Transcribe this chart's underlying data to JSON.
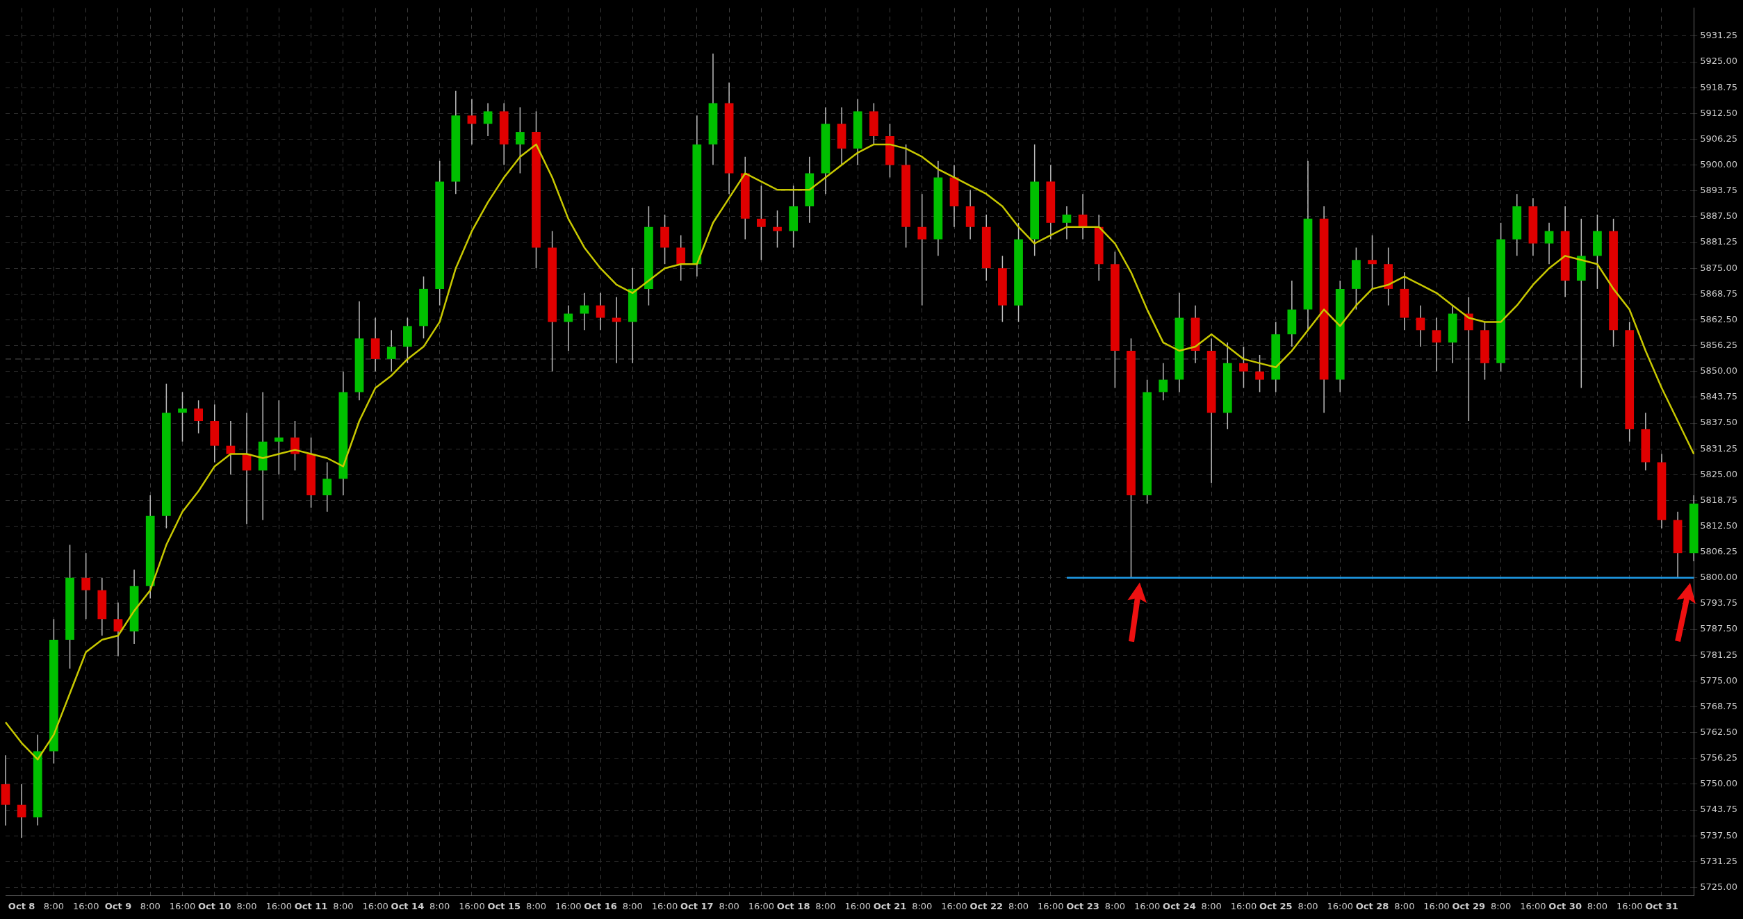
{
  "chart_data": {
    "type": "candlestick",
    "categories": [
      null,
      "Oct 8",
      null,
      "8:00",
      null,
      "16:00",
      null,
      "Oct 9",
      null,
      "8:00",
      null,
      "16:00",
      null,
      "Oct 10",
      null,
      "8:00",
      null,
      "16:00",
      null,
      "Oct 11",
      null,
      "8:00",
      null,
      "16:00",
      null,
      "Oct 14",
      null,
      "8:00",
      null,
      "16:00",
      null,
      "Oct 15",
      null,
      "8:00",
      null,
      "16:00",
      null,
      "Oct 16",
      null,
      "8:00",
      null,
      "16:00",
      null,
      "Oct 17",
      null,
      "8:00",
      null,
      "16:00",
      null,
      "Oct 18",
      null,
      "8:00",
      null,
      "16:00",
      null,
      "Oct 21",
      null,
      "8:00",
      null,
      "16:00",
      null,
      "Oct 22",
      null,
      "8:00",
      null,
      "16:00",
      null,
      "Oct 23",
      null,
      "8:00",
      null,
      "16:00",
      null,
      "Oct 24",
      null,
      "8:00",
      null,
      "16:00",
      null,
      "Oct 25",
      null,
      "8:00",
      null,
      "16:00",
      null,
      "Oct 28",
      null,
      "8:00",
      null,
      "16:00",
      null,
      "Oct 29",
      null,
      "8:00",
      null,
      "16:00",
      null,
      "Oct 30",
      null,
      "8:00",
      null,
      "16:00",
      null,
      "Oct 31",
      null,
      null
    ],
    "ohlc": [
      [
        5750,
        5757,
        5740,
        5745
      ],
      [
        5745,
        5750,
        5737,
        5742
      ],
      [
        5742,
        5762,
        5740,
        5758
      ],
      [
        5758,
        5790,
        5755,
        5785
      ],
      [
        5785,
        5808,
        5778,
        5800
      ],
      [
        5800,
        5806,
        5790,
        5797
      ],
      [
        5797,
        5800,
        5786,
        5790
      ],
      [
        5790,
        5794,
        5781,
        5787
      ],
      [
        5787,
        5802,
        5784,
        5798
      ],
      [
        5798,
        5820,
        5795,
        5815
      ],
      [
        5815,
        5847,
        5812,
        5840
      ],
      [
        5840,
        5845,
        5833,
        5841
      ],
      [
        5841,
        5843,
        5835,
        5838
      ],
      [
        5838,
        5842,
        5828,
        5832
      ],
      [
        5832,
        5838,
        5825,
        5830
      ],
      [
        5830,
        5840,
        5813,
        5826
      ],
      [
        5826,
        5845,
        5814,
        5833
      ],
      [
        5833,
        5843,
        5825,
        5834
      ],
      [
        5834,
        5838,
        5826,
        5830
      ],
      [
        5830,
        5834,
        5817,
        5820
      ],
      [
        5820,
        5828,
        5816,
        5824
      ],
      [
        5824,
        5850,
        5820,
        5845
      ],
      [
        5845,
        5867,
        5843,
        5858
      ],
      [
        5858,
        5863,
        5850,
        5853
      ],
      [
        5853,
        5860,
        5850,
        5856
      ],
      [
        5856,
        5863,
        5852,
        5861
      ],
      [
        5861,
        5873,
        5858,
        5870
      ],
      [
        5870,
        5901,
        5866,
        5896
      ],
      [
        5896,
        5918,
        5893,
        5912
      ],
      [
        5912,
        5916,
        5905,
        5910
      ],
      [
        5910,
        5915,
        5907,
        5913
      ],
      [
        5913,
        5915,
        5900,
        5905
      ],
      [
        5905,
        5914,
        5898,
        5908
      ],
      [
        5908,
        5913,
        5875,
        5880
      ],
      [
        5880,
        5884,
        5850,
        5862
      ],
      [
        5862,
        5866,
        5855,
        5864
      ],
      [
        5864,
        5869,
        5860,
        5866
      ],
      [
        5866,
        5869,
        5860,
        5863
      ],
      [
        5863,
        5868,
        5852,
        5862
      ],
      [
        5862,
        5875,
        5852,
        5870
      ],
      [
        5870,
        5890,
        5866,
        5885
      ],
      [
        5885,
        5888,
        5876,
        5880
      ],
      [
        5880,
        5883,
        5872,
        5876
      ],
      [
        5876,
        5912,
        5873,
        5905
      ],
      [
        5905,
        5927,
        5900,
        5915
      ],
      [
        5915,
        5920,
        5893,
        5898
      ],
      [
        5898,
        5902,
        5882,
        5887
      ],
      [
        5887,
        5895,
        5877,
        5885
      ],
      [
        5885,
        5889,
        5880,
        5884
      ],
      [
        5884,
        5895,
        5880,
        5890
      ],
      [
        5890,
        5902,
        5886,
        5898
      ],
      [
        5898,
        5914,
        5893,
        5910
      ],
      [
        5910,
        5914,
        5900,
        5904
      ],
      [
        5904,
        5916,
        5900,
        5913
      ],
      [
        5913,
        5915,
        5905,
        5907
      ],
      [
        5907,
        5910,
        5897,
        5900
      ],
      [
        5900,
        5905,
        5880,
        5885
      ],
      [
        5885,
        5893,
        5866,
        5882
      ],
      [
        5882,
        5901,
        5878,
        5897
      ],
      [
        5897,
        5900,
        5885,
        5890
      ],
      [
        5890,
        5894,
        5882,
        5885
      ],
      [
        5885,
        5888,
        5872,
        5875
      ],
      [
        5875,
        5878,
        5862,
        5866
      ],
      [
        5866,
        5886,
        5862,
        5882
      ],
      [
        5882,
        5905,
        5878,
        5896
      ],
      [
        5896,
        5900,
        5882,
        5886
      ],
      [
        5886,
        5890,
        5882,
        5888
      ],
      [
        5888,
        5893,
        5882,
        5885
      ],
      [
        5885,
        5888,
        5872,
        5876
      ],
      [
        5876,
        5879,
        5846,
        5855
      ],
      [
        5855,
        5858,
        5800,
        5820
      ],
      [
        5820,
        5848,
        5818,
        5845
      ],
      [
        5845,
        5852,
        5843,
        5848
      ],
      [
        5848,
        5869,
        5845,
        5863
      ],
      [
        5863,
        5866,
        5852,
        5855
      ],
      [
        5855,
        5858,
        5823,
        5840
      ],
      [
        5840,
        5857,
        5836,
        5852
      ],
      [
        5852,
        5856,
        5846,
        5850
      ],
      [
        5850,
        5854,
        5845,
        5848
      ],
      [
        5848,
        5862,
        5845,
        5859
      ],
      [
        5859,
        5872,
        5856,
        5865
      ],
      [
        5865,
        5901,
        5860,
        5887
      ],
      [
        5887,
        5890,
        5840,
        5848
      ],
      [
        5848,
        5872,
        5845,
        5870
      ],
      [
        5870,
        5880,
        5865,
        5877
      ],
      [
        5877,
        5883,
        5870,
        5876
      ],
      [
        5876,
        5880,
        5866,
        5870
      ],
      [
        5870,
        5874,
        5860,
        5863
      ],
      [
        5863,
        5866,
        5856,
        5860
      ],
      [
        5860,
        5863,
        5850,
        5857
      ],
      [
        5857,
        5866,
        5852,
        5864
      ],
      [
        5864,
        5868,
        5838,
        5860
      ],
      [
        5860,
        5862,
        5848,
        5852
      ],
      [
        5852,
        5886,
        5850,
        5882
      ],
      [
        5882,
        5893,
        5878,
        5890
      ],
      [
        5890,
        5892,
        5878,
        5881
      ],
      [
        5881,
        5886,
        5876,
        5884
      ],
      [
        5884,
        5890,
        5868,
        5872
      ],
      [
        5872,
        5887,
        5846,
        5878
      ],
      [
        5878,
        5888,
        5870,
        5884
      ],
      [
        5884,
        5887,
        5856,
        5860
      ],
      [
        5860,
        5862,
        5833,
        5836
      ],
      [
        5836,
        5840,
        5826,
        5828
      ],
      [
        5828,
        5830,
        5812,
        5814
      ],
      [
        5814,
        5816,
        5800,
        5806
      ],
      [
        5806,
        5820,
        5804,
        5818
      ]
    ],
    "colors": [
      "#e00000",
      "#e00000",
      "#00c000",
      "#00c000",
      "#00c000",
      "#e00000",
      "#e00000",
      "#e00000",
      "#00c000",
      "#00c000",
      "#00c000",
      "#00c000",
      "#e00000",
      "#e00000",
      "#e00000",
      "#e00000",
      "#00c000",
      "#00c000",
      "#e00000",
      "#e00000",
      "#00c000",
      "#00c000",
      "#00c000",
      "#e00000",
      "#00c000",
      "#00c000",
      "#00c000",
      "#00c000",
      "#00c000",
      "#e00000",
      "#00c000",
      "#e00000",
      "#00c000",
      "#e00000",
      "#e00000",
      "#00c000",
      "#00c000",
      "#e00000",
      "#e00000",
      "#00c000",
      "#00c000",
      "#e00000",
      "#e00000",
      "#00c000",
      "#00c000",
      "#e00000",
      "#e00000",
      "#e00000",
      "#e00000",
      "#00c000",
      "#00c000",
      "#00c000",
      "#e00000",
      "#00c000",
      "#e00000",
      "#e00000",
      "#e00000",
      "#e00000",
      "#00c000",
      "#e00000",
      "#e00000",
      "#e00000",
      "#e00000",
      "#00c000",
      "#00c000",
      "#e00000",
      "#00c000",
      "#e00000",
      "#e00000",
      "#e00000",
      "#e00000",
      "#00c000",
      "#00c000",
      "#00c000",
      "#e00000",
      "#e00000",
      "#00c000",
      "#e00000",
      "#e00000",
      "#00c000",
      "#00c000",
      "#00c000",
      "#e00000",
      "#00c000",
      "#00c000",
      "#e00000",
      "#e00000",
      "#e00000",
      "#e00000",
      "#e00000",
      "#00c000",
      "#e00000",
      "#e00000",
      "#00c000",
      "#00c000",
      "#e00000",
      "#00c000",
      "#e00000",
      "#00c000",
      "#00c000",
      "#e00000",
      "#e00000",
      "#e00000",
      "#e00000",
      "#e00000",
      "#00c000"
    ],
    "series": [
      {
        "type": "line",
        "color": "#c8c800",
        "values": [
          5765,
          5760,
          5756,
          5762,
          5772,
          5782,
          5785,
          5786,
          5792,
          5797,
          5808,
          5816,
          5821,
          5827,
          5830,
          5830,
          5829,
          5830,
          5831,
          5830,
          5829,
          5827,
          5838,
          5846,
          5849,
          5853,
          5856,
          5862,
          5875,
          5884,
          5891,
          5897,
          5902,
          5905,
          5897,
          5887,
          5880,
          5875,
          5871,
          5869,
          5872,
          5875,
          5876,
          5876,
          5886,
          5892,
          5898,
          5896,
          5894,
          5894,
          5894,
          5897,
          5900,
          5903,
          5905,
          5905,
          5904,
          5902,
          5899,
          5897,
          5895,
          5893,
          5890,
          5885,
          5881,
          5883,
          5885,
          5885,
          5885,
          5881,
          5874,
          5865,
          5857,
          5855,
          5856,
          5859,
          5856,
          5853,
          5852,
          5851,
          5855,
          5860,
          5865,
          5861,
          5866,
          5870,
          5871,
          5873,
          5871,
          5869,
          5866,
          5863,
          5862,
          5862,
          5866,
          5871,
          5875,
          5878,
          5877,
          5876,
          5870,
          5865,
          5855,
          5846,
          5838,
          5830
        ]
      },
      {
        "type": "line",
        "color": "#1e9be8",
        "values": [
          null,
          null,
          null,
          null,
          null,
          null,
          null,
          null,
          null,
          null,
          null,
          null,
          null,
          null,
          null,
          null,
          null,
          null,
          null,
          null,
          null,
          null,
          null,
          null,
          null,
          null,
          null,
          null,
          null,
          null,
          null,
          null,
          null,
          null,
          null,
          null,
          null,
          null,
          null,
          null,
          null,
          null,
          null,
          null,
          null,
          null,
          null,
          null,
          null,
          null,
          null,
          null,
          null,
          null,
          null,
          null,
          null,
          null,
          null,
          null,
          null,
          null,
          null,
          null,
          null,
          null,
          5800,
          5800,
          5800,
          5800,
          5800,
          5800,
          5800,
          5800,
          5800,
          5800,
          5800,
          5800,
          5800,
          5800,
          5800,
          5800,
          5800,
          5800,
          5800,
          5800,
          5800,
          5800,
          5800,
          5800,
          5800,
          5800,
          5800,
          5800,
          5800,
          5800,
          5800,
          5800,
          5800,
          5800,
          5800,
          5800,
          5800,
          5800,
          5800,
          5800
        ]
      }
    ],
    "ref_lines": [
      {
        "axis": "y",
        "value": 5853,
        "color": "#555555",
        "line_style": "dashed"
      }
    ],
    "ylim": [
      5723,
      5938
    ],
    "yticks": [
      {
        "value": 5725,
        "label": "5725.00"
      },
      {
        "value": 5731.25,
        "label": "5731.25"
      },
      {
        "value": 5737.5,
        "label": "5737.50"
      },
      {
        "value": 5743.75,
        "label": "5743.75"
      },
      {
        "value": 5750,
        "label": "5750.00"
      },
      {
        "value": 5756.25,
        "label": "5756.25"
      },
      {
        "value": 5762.5,
        "label": "5762.50"
      },
      {
        "value": 5768.75,
        "label": "5768.75"
      },
      {
        "value": 5775,
        "label": "5775.00"
      },
      {
        "value": 5781.25,
        "label": "5781.25"
      },
      {
        "value": 5787.5,
        "label": "5787.50"
      },
      {
        "value": 5793.75,
        "label": "5793.75"
      },
      {
        "value": 5800,
        "label": "5800.00"
      },
      {
        "value": 5806.25,
        "label": "5806.25"
      },
      {
        "value": 5812.5,
        "label": "5812.50"
      },
      {
        "value": 5818.75,
        "label": "5818.75"
      },
      {
        "value": 5825,
        "label": "5825.00"
      },
      {
        "value": 5831.25,
        "label": "5831.25"
      },
      {
        "value": 5837.5,
        "label": "5837.50"
      },
      {
        "value": 5843.75,
        "label": "5843.75"
      },
      {
        "value": 5850,
        "label": "5850.00"
      },
      {
        "value": 5856.25,
        "label": "5856.25"
      },
      {
        "value": 5862.5,
        "label": "5862.50"
      },
      {
        "value": 5868.75,
        "label": "5868.75"
      },
      {
        "value": 5875,
        "label": "5875.00"
      },
      {
        "value": 5881.25,
        "label": "5881.25"
      },
      {
        "value": 5887.5,
        "label": "5887.50"
      },
      {
        "value": 5893.75,
        "label": "5893.75"
      },
      {
        "value": 5900,
        "label": "5900.00"
      },
      {
        "value": 5906.25,
        "label": "5906.25"
      },
      {
        "value": 5912.5,
        "label": "5912.50"
      },
      {
        "value": 5918.75,
        "label": "5918.75"
      },
      {
        "value": 5925,
        "label": "5925.00"
      },
      {
        "value": 5931.25,
        "label": "5931.25"
      }
    ],
    "grid": true
  }
}
